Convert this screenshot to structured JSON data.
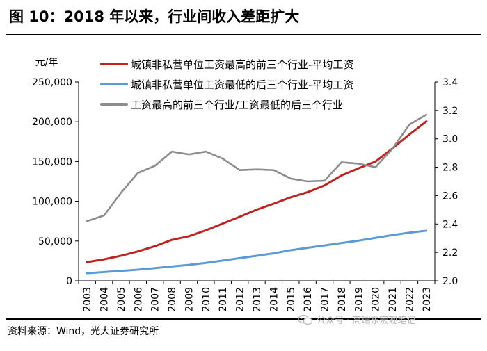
{
  "title": "图 10：2018 年以来，行业间收入差距扩大",
  "source": "资料来源：Wind，光大证券研究所",
  "watermark": "公众号 · 高瑞东宏观笔记",
  "colors": {
    "series1": "#c0221f",
    "series2": "#5b9bd5",
    "series3": "#8c8c8c",
    "axis": "#000000"
  },
  "chart_data": {
    "type": "line",
    "left_axis_unit": "元/年",
    "x": [
      "2003",
      "2004",
      "2005",
      "2006",
      "2007",
      "2008",
      "2009",
      "2010",
      "2011",
      "2012",
      "2013",
      "2014",
      "2015",
      "2016",
      "2017",
      "2018",
      "2019",
      "2020",
      "2021",
      "2022",
      "2023"
    ],
    "y_left": {
      "min": 0,
      "max": 250000,
      "ticks": [
        0,
        50000,
        100000,
        150000,
        200000,
        250000
      ],
      "tick_labels": [
        "0",
        "50,000",
        "100,000",
        "150,000",
        "200,000",
        "250,000"
      ]
    },
    "y_right": {
      "min": 2.0,
      "max": 3.4,
      "ticks": [
        2.0,
        2.2,
        2.4,
        2.6,
        2.8,
        3.0,
        3.2,
        3.4
      ],
      "tick_labels": [
        "2.0",
        "2.2",
        "2.4",
        "2.6",
        "2.8",
        "3.0",
        "3.2",
        "3.4"
      ]
    },
    "series": [
      {
        "name": "城镇非私营单位工资最高的前三个行业-平均工资",
        "axis": "left",
        "color": "#c0221f",
        "values": [
          23500,
          27000,
          31500,
          37000,
          43500,
          51500,
          56000,
          63500,
          72000,
          80500,
          89500,
          97000,
          105000,
          111500,
          120000,
          132500,
          141500,
          150000,
          166500,
          184000,
          200500
        ]
      },
      {
        "name": "城镇非私营单位工资最低的后三个行业-平均工资",
        "axis": "left",
        "color": "#5b9bd5",
        "values": [
          9500,
          11000,
          12500,
          14000,
          16000,
          18000,
          20000,
          22500,
          25500,
          28500,
          31500,
          34500,
          38500,
          41500,
          44500,
          47500,
          50500,
          54000,
          57500,
          60500,
          63000
        ]
      },
      {
        "name": "工资最高的前三个行业/工资最低的后三个行业",
        "axis": "right",
        "color": "#8c8c8c",
        "values": [
          2.42,
          2.46,
          2.62,
          2.76,
          2.81,
          2.91,
          2.89,
          2.91,
          2.86,
          2.78,
          2.785,
          2.78,
          2.72,
          2.7,
          2.705,
          2.835,
          2.825,
          2.8,
          2.93,
          3.1,
          3.17
        ]
      }
    ]
  }
}
